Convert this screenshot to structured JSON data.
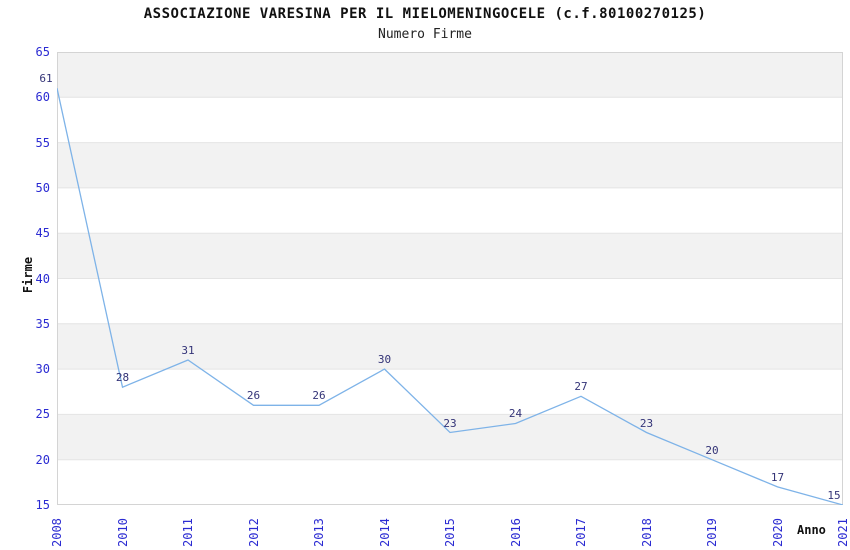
{
  "chart_data": {
    "type": "line",
    "title": "ASSOCIAZIONE VARESINA PER IL MIELOMENINGOCELE (c.f.80100270125)",
    "subtitle": "Numero Firme",
    "xlabel": "Anno",
    "ylabel": "Firme",
    "categories": [
      "2008",
      "2010",
      "2011",
      "2012",
      "2013",
      "2014",
      "2015",
      "2016",
      "2017",
      "2018",
      "2019",
      "2020",
      "2021"
    ],
    "values": [
      61,
      28,
      31,
      26,
      26,
      30,
      23,
      24,
      27,
      23,
      20,
      17,
      15
    ],
    "data_labels_visible": true,
    "ylim": [
      15,
      65
    ],
    "ytick_step": 5,
    "yticks": [
      65,
      60,
      55,
      50,
      45,
      40,
      35,
      30,
      25,
      20,
      15
    ],
    "grid": "horizontal",
    "plot_bands": "alternating-gray",
    "legend": "none",
    "markers": "none",
    "colors": {
      "line": "#7eb3e8",
      "tick_label": "#2b2bd2",
      "data_label": "#333377",
      "band": "#f2f2f2",
      "grid": "#e4e4e4",
      "border": "#d4d4d4",
      "background": "#ffffff"
    }
  }
}
